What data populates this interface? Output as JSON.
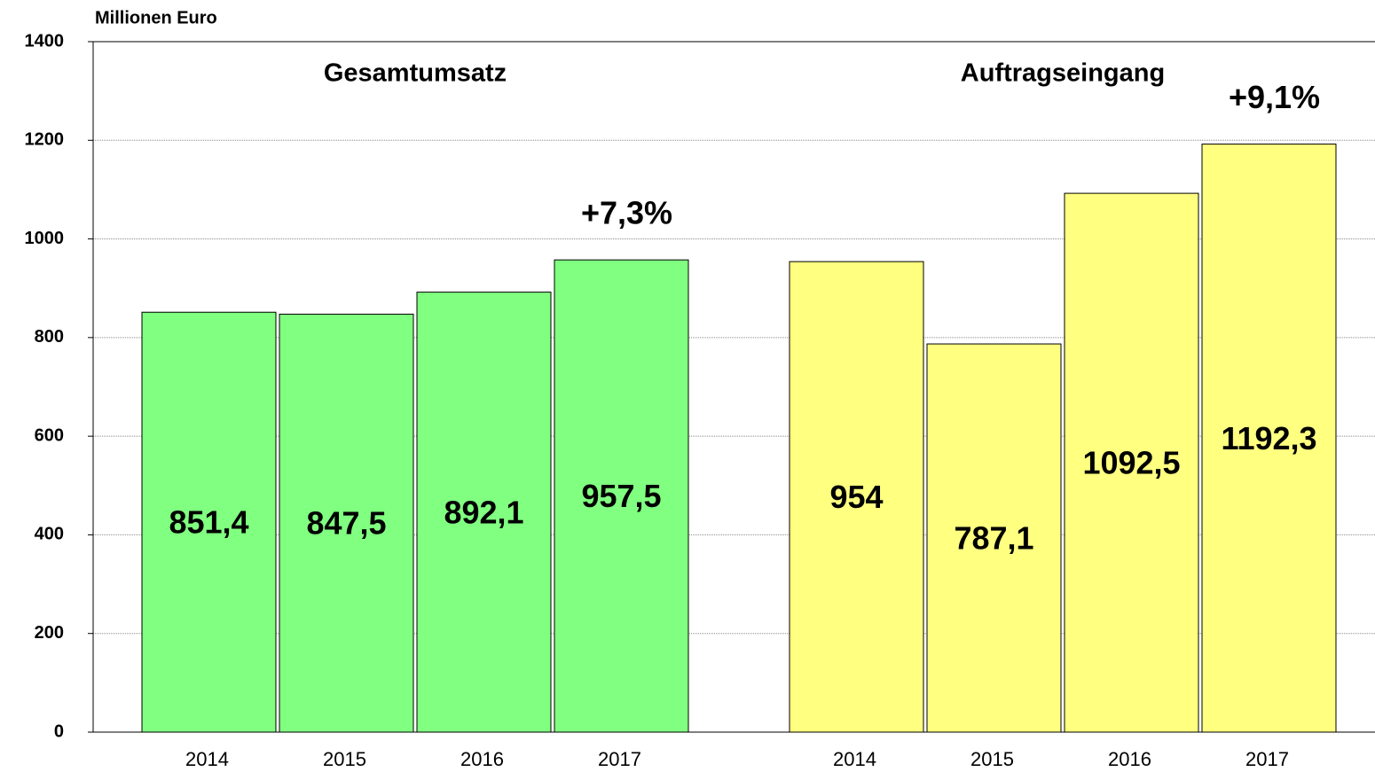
{
  "chart_data": {
    "type": "bar",
    "y_label": "Millionen Euro",
    "ylim": [
      0,
      1400
    ],
    "yticks": [
      0,
      200,
      400,
      600,
      800,
      1000,
      1200,
      1400
    ],
    "grid": true,
    "groups": [
      {
        "name": "Gesamtumsatz",
        "color": "#80ff80",
        "categories": [
          "2014",
          "2015",
          "2016",
          "2017"
        ],
        "values": [
          851.4,
          847.5,
          892.1,
          957.5
        ],
        "value_labels": [
          "851,4",
          "847,5",
          "892,1",
          "957,5"
        ],
        "annotation": "+7,3%"
      },
      {
        "name": "Auftragseingang",
        "color": "#ffff80",
        "categories": [
          "2014",
          "2015",
          "2016",
          "2017"
        ],
        "values": [
          954,
          787.1,
          1092.5,
          1192.3
        ],
        "value_labels": [
          "954",
          "787,1",
          "1092,5",
          "1192,3"
        ],
        "annotation": "+9,1%"
      }
    ]
  }
}
